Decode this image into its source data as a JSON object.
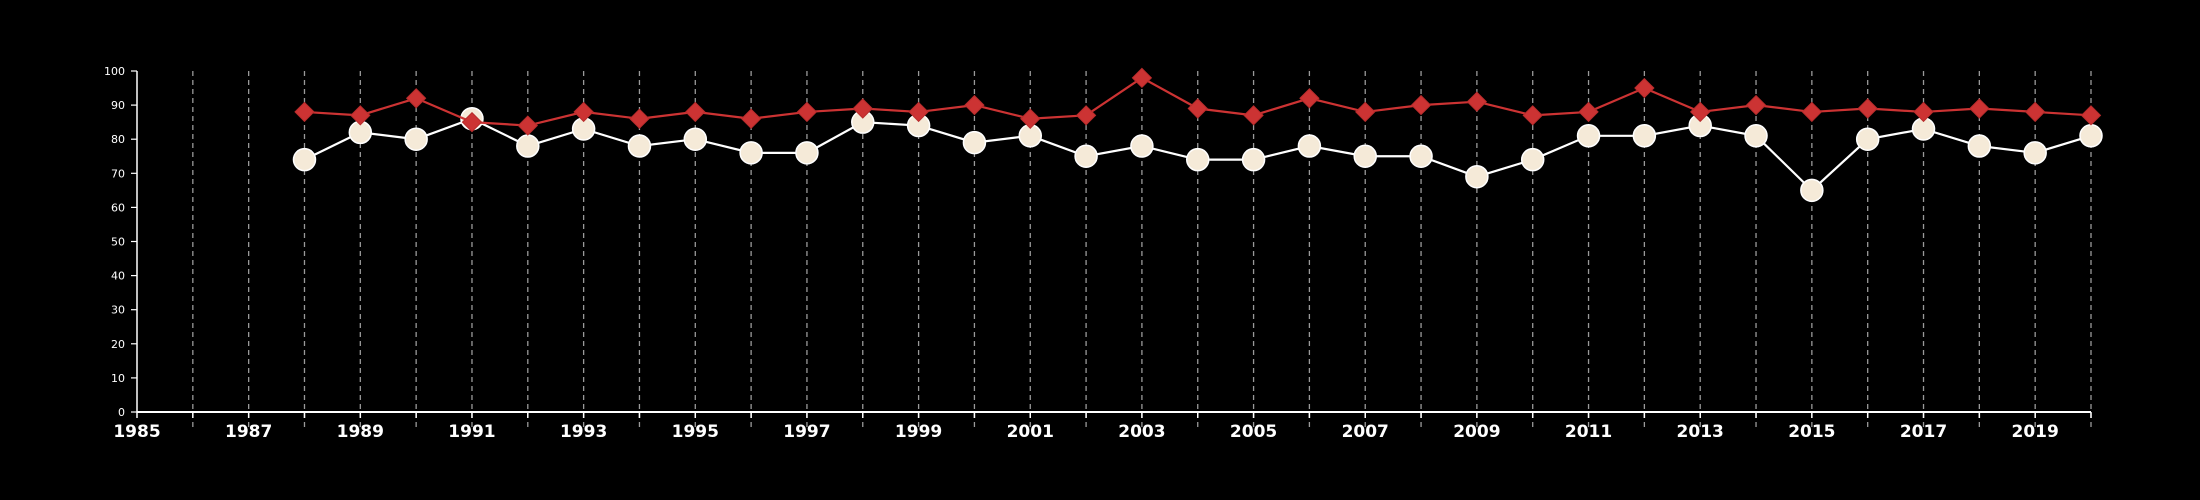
{
  "chart_data": {
    "type": "line",
    "title": "",
    "xlabel": "",
    "ylabel": "",
    "xlim": [
      1985,
      2020
    ],
    "ylim": [
      0,
      100
    ],
    "y_ticks": [
      0,
      10,
      20,
      30,
      40,
      50,
      60,
      70,
      80,
      90,
      100
    ],
    "x_tick_labels": [
      "1985",
      "1987",
      "1989",
      "1991",
      "1993",
      "1995",
      "1997",
      "1999",
      "2001",
      "2003",
      "2005",
      "2007",
      "2009",
      "2011",
      "2013",
      "2015",
      "2017",
      "2019"
    ],
    "x": [
      1988,
      1989,
      1990,
      1991,
      1992,
      1993,
      1994,
      1995,
      1996,
      1997,
      1998,
      1999,
      2000,
      2001,
      2002,
      2003,
      2004,
      2005,
      2006,
      2007,
      2008,
      2009,
      2010,
      2011,
      2012,
      2013,
      2014,
      2015,
      2016,
      2017,
      2018,
      2019,
      2020
    ],
    "grid": "vertical dashed lines at every year",
    "legend": "none",
    "series": [
      {
        "marker": "diamond",
        "color": "#cc3333",
        "values": [
          88,
          87,
          92,
          85,
          84,
          88,
          86,
          88,
          86,
          88,
          89,
          88,
          90,
          86,
          87,
          98,
          89,
          87,
          92,
          88,
          90,
          91,
          87,
          88,
          95,
          88,
          90,
          88,
          89,
          88,
          89,
          88,
          87
        ]
      },
      {
        "marker": "circle",
        "color": "#f5ead8",
        "values": [
          74,
          82,
          80,
          86,
          78,
          83,
          78,
          80,
          76,
          76,
          85,
          84,
          79,
          81,
          75,
          78,
          74,
          74,
          78,
          75,
          75,
          69,
          74,
          81,
          81,
          84,
          81,
          65,
          80,
          83,
          78,
          76,
          81
        ]
      }
    ]
  }
}
